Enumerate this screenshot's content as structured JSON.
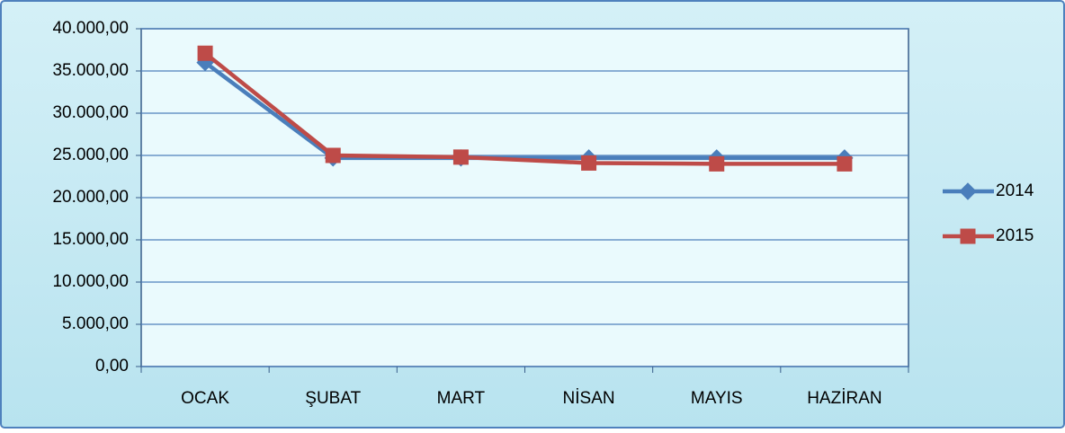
{
  "chart_data": {
    "type": "line",
    "categories": [
      "OCAK",
      "ŞUBAT",
      "MART",
      "NİSAN",
      "MAYIS",
      "HAZİRAN"
    ],
    "series": [
      {
        "name": "2014",
        "color": "#4a7ebb",
        "marker": "diamond",
        "values": [
          36000,
          24700,
          24700,
          24700,
          24700,
          24700
        ]
      },
      {
        "name": "2015",
        "color": "#be4b48",
        "marker": "square",
        "values": [
          37100,
          25000,
          24800,
          24100,
          24000,
          24000
        ]
      }
    ],
    "ylim": [
      0,
      40000
    ],
    "yticks": [
      {
        "value": 0,
        "label": "0,00"
      },
      {
        "value": 5000,
        "label": "5.000,00"
      },
      {
        "value": 10000,
        "label": "10.000,00"
      },
      {
        "value": 15000,
        "label": "15.000,00"
      },
      {
        "value": 20000,
        "label": "20.000,00"
      },
      {
        "value": 25000,
        "label": "25.000,00"
      },
      {
        "value": 30000,
        "label": "30.000,00"
      },
      {
        "value": 35000,
        "label": "35.000,00"
      },
      {
        "value": 40000,
        "label": "40.000,00"
      }
    ],
    "grid": true,
    "legend": "right"
  }
}
